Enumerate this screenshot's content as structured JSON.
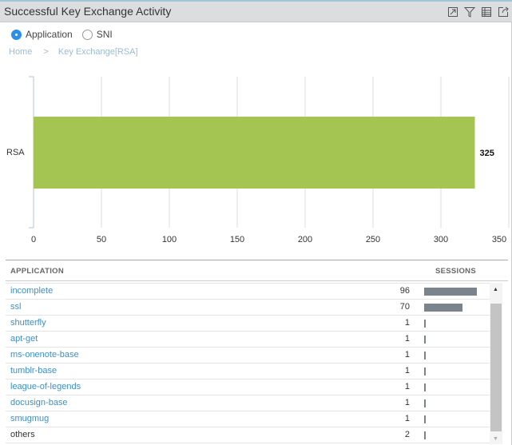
{
  "header": {
    "title": "Successful Key Exchange Activity",
    "icons": [
      "expand-icon",
      "filter-icon",
      "table-icon",
      "export-icon"
    ]
  },
  "radios": [
    {
      "label": "Application",
      "selected": true
    },
    {
      "label": "SNI",
      "selected": false
    }
  ],
  "breadcrumb": {
    "home": "Home",
    "sep": ">",
    "current": "Key Exchange[RSA]"
  },
  "chart_data": {
    "type": "bar",
    "orientation": "horizontal",
    "categories": [
      "RSA"
    ],
    "values": [
      325
    ],
    "data_labels": [
      "325"
    ],
    "xlim": [
      0,
      350
    ],
    "xticks": [
      "0",
      "50",
      "100",
      "150",
      "200",
      "250",
      "300",
      "350"
    ],
    "grid": true,
    "color": "#a5c552"
  },
  "table": {
    "columns": [
      "APPLICATION",
      "SESSIONS"
    ],
    "rows": [
      {
        "name": "incomplete",
        "sessions": "96",
        "value": 96
      },
      {
        "name": "ssl",
        "sessions": "70",
        "value": 70
      },
      {
        "name": "shutterfly",
        "sessions": "1",
        "value": 1
      },
      {
        "name": "apt-get",
        "sessions": "1",
        "value": 1
      },
      {
        "name": "ms-onenote-base",
        "sessions": "1",
        "value": 1
      },
      {
        "name": "tumblr-base",
        "sessions": "1",
        "value": 1
      },
      {
        "name": "league-of-legends",
        "sessions": "1",
        "value": 1
      },
      {
        "name": "docusign-base",
        "sessions": "1",
        "value": 1
      },
      {
        "name": "smugmug",
        "sessions": "1",
        "value": 1
      },
      {
        "name": "others",
        "sessions": "2",
        "value": 2
      }
    ]
  }
}
